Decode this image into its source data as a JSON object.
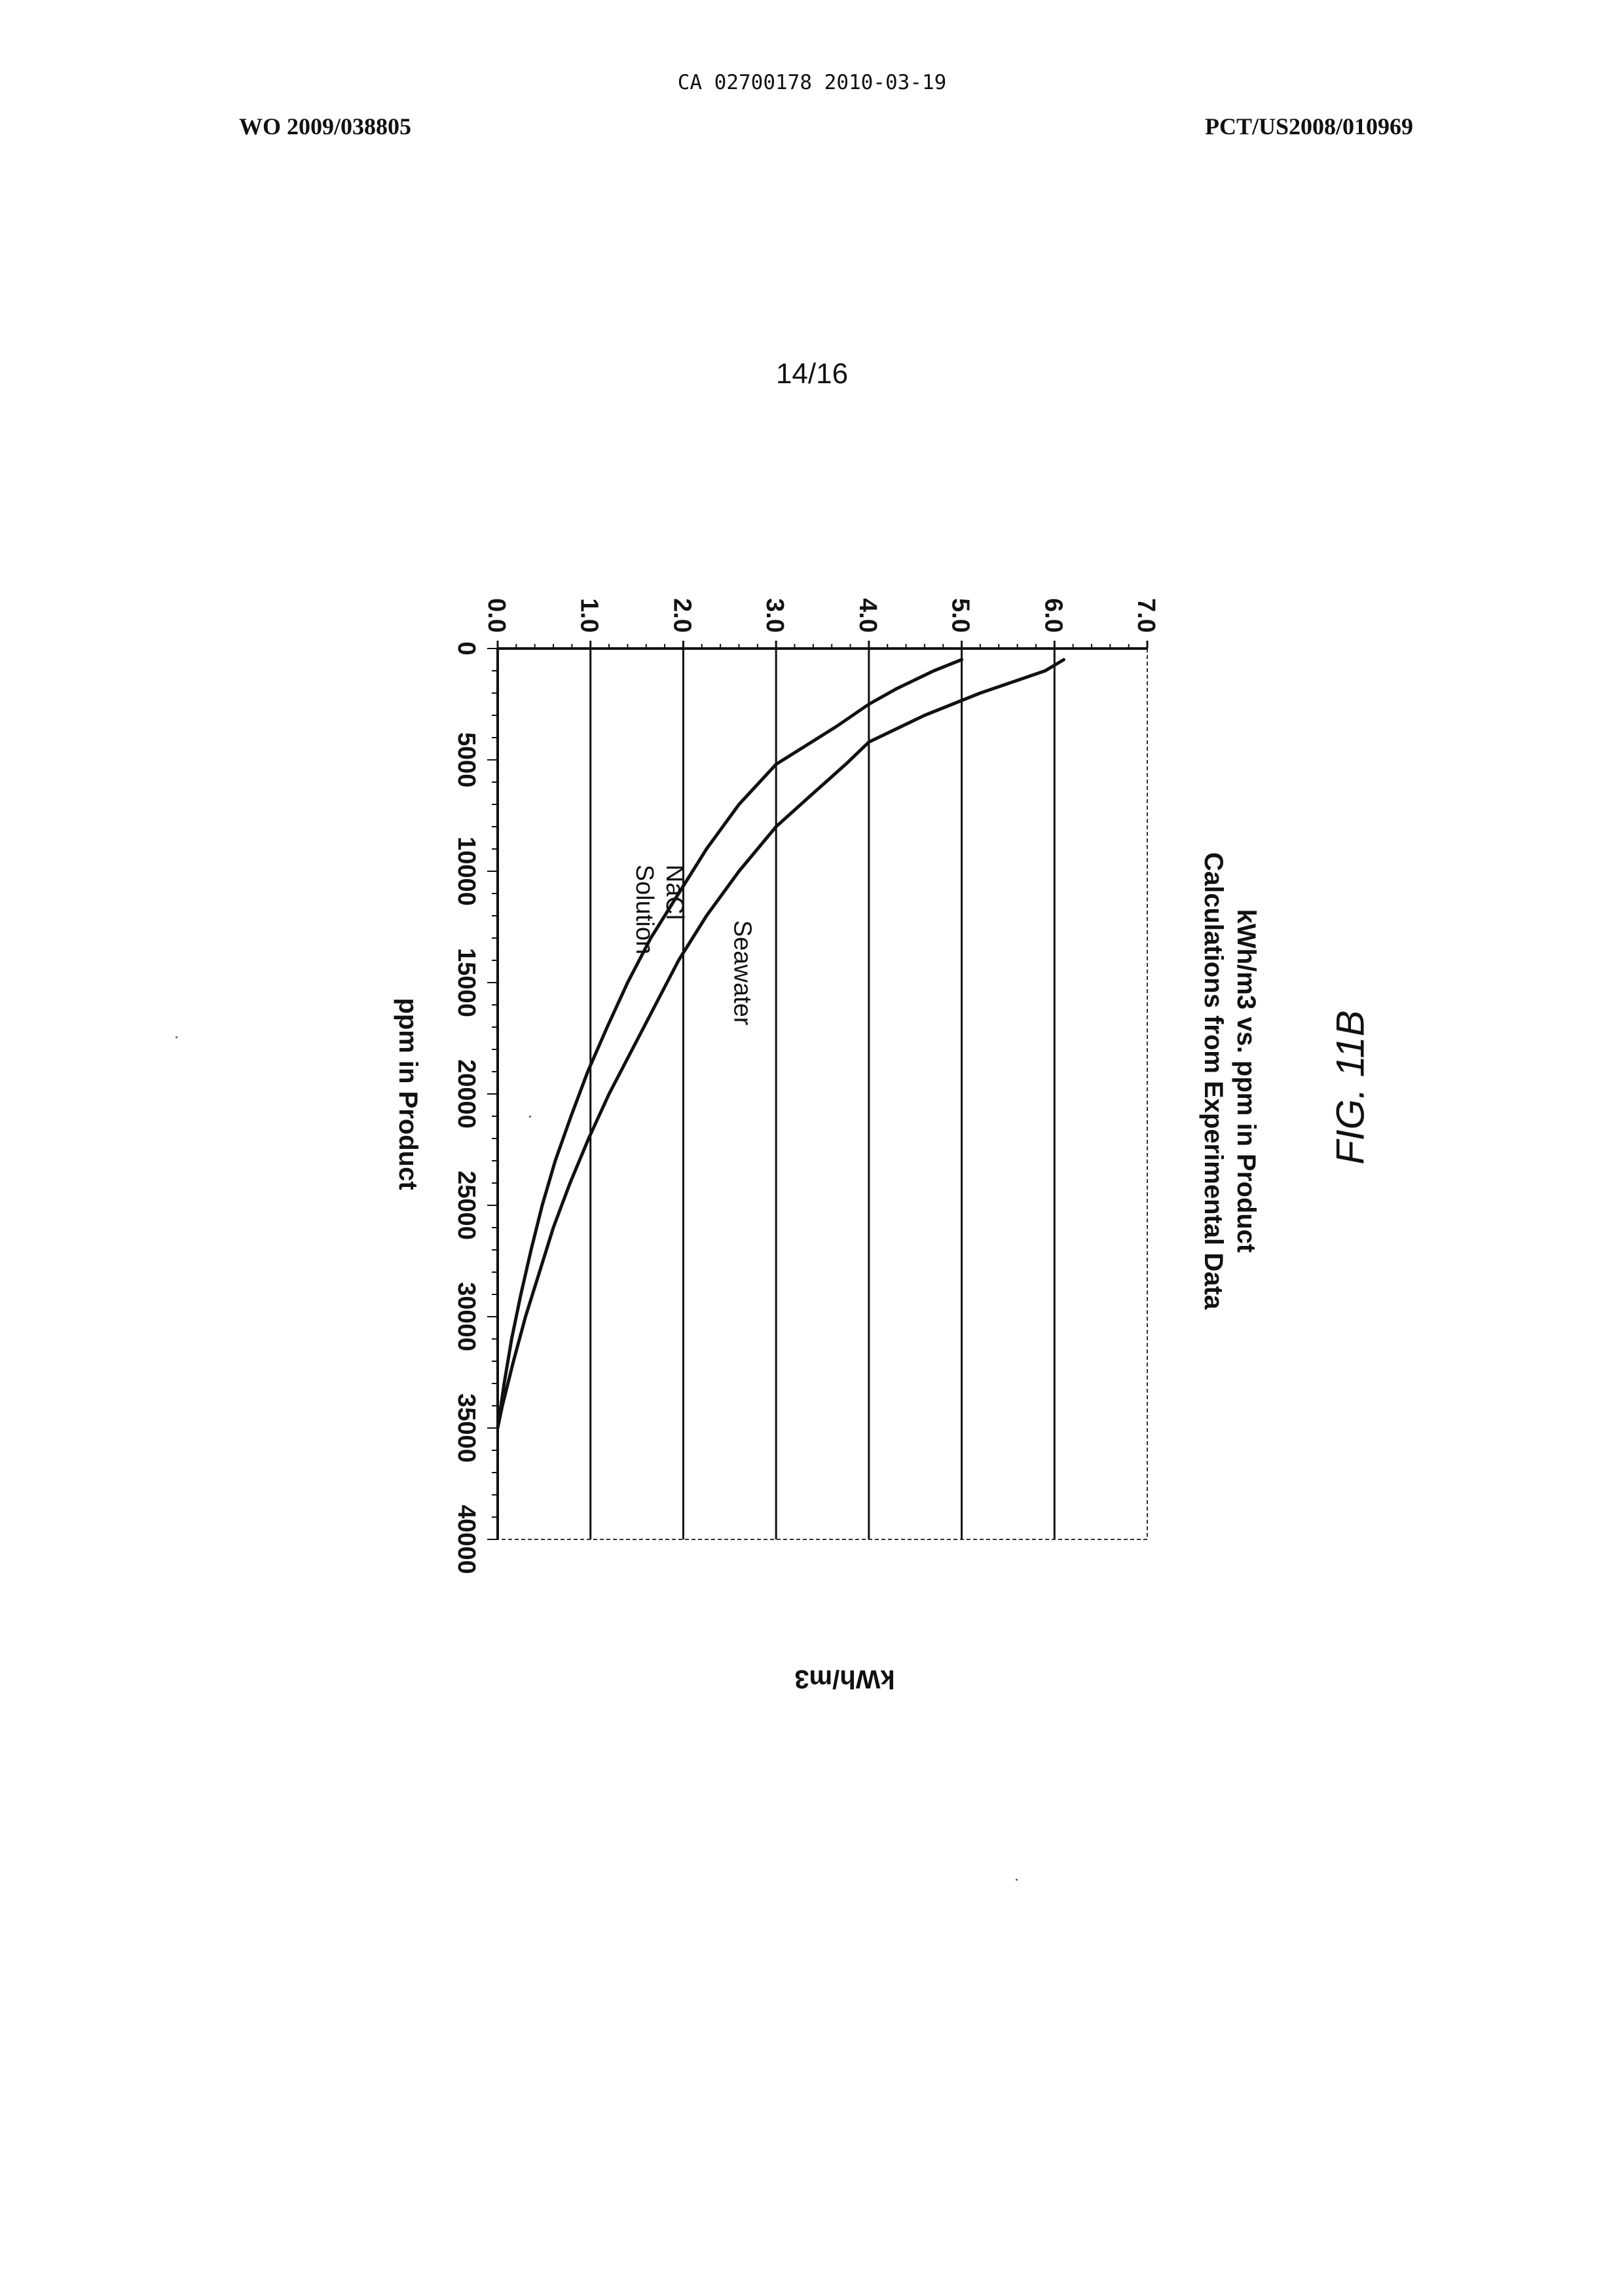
{
  "header": {
    "stamp": "CA 02700178 2010-03-19",
    "publication_number": "WO 2009/038805",
    "application_number": "PCT/US2008/010969",
    "sheet": "14/16"
  },
  "figure_label": "FIG. 11B",
  "chart_data": {
    "type": "line",
    "title": "kWh/m3 vs. ppm in Product",
    "subtitle": "Calculations from Experimental Data",
    "xlabel": "ppm in Product",
    "ylabel": "kWh/m3",
    "xlim": [
      0,
      40000
    ],
    "ylim": [
      0.0,
      7.0
    ],
    "x_ticks": [
      "0",
      "5000",
      "10000",
      "15000",
      "20000",
      "25000",
      "30000",
      "35000",
      "40000"
    ],
    "y_ticks": [
      "0.0",
      "1.0",
      "2.0",
      "3.0",
      "4.0",
      "5.0",
      "6.0",
      "7.0"
    ],
    "grid": "horizontal",
    "orientation": "rotated 90° counter-clockwise on page",
    "series": [
      {
        "name": "Seawater",
        "x": [
          500,
          1000,
          2000,
          3000,
          4200,
          5200,
          6500,
          8000,
          10000,
          12000,
          14000,
          16000,
          18000,
          20000,
          22000,
          24000,
          26000,
          28000,
          30000,
          32000,
          34000,
          35000
        ],
        "y": [
          6.1,
          5.9,
          5.2,
          4.6,
          4.0,
          3.75,
          3.4,
          3.0,
          2.6,
          2.25,
          1.95,
          1.7,
          1.45,
          1.2,
          0.98,
          0.78,
          0.6,
          0.45,
          0.3,
          0.17,
          0.05,
          0.0
        ]
      },
      {
        "name": "NaCl Solution",
        "x": [
          500,
          1000,
          1800,
          2500,
          3500,
          5200,
          7000,
          9000,
          11000,
          13000,
          15000,
          17000,
          19000,
          21000,
          23000,
          25000,
          27000,
          29000,
          31000,
          33000,
          35000
        ],
        "y": [
          5.0,
          4.7,
          4.3,
          4.0,
          3.65,
          3.0,
          2.6,
          2.25,
          1.95,
          1.65,
          1.4,
          1.18,
          0.97,
          0.79,
          0.62,
          0.48,
          0.36,
          0.25,
          0.15,
          0.07,
          0.0
        ]
      }
    ],
    "annotations": [
      "Seawater",
      "NaCl",
      "Solution"
    ]
  }
}
